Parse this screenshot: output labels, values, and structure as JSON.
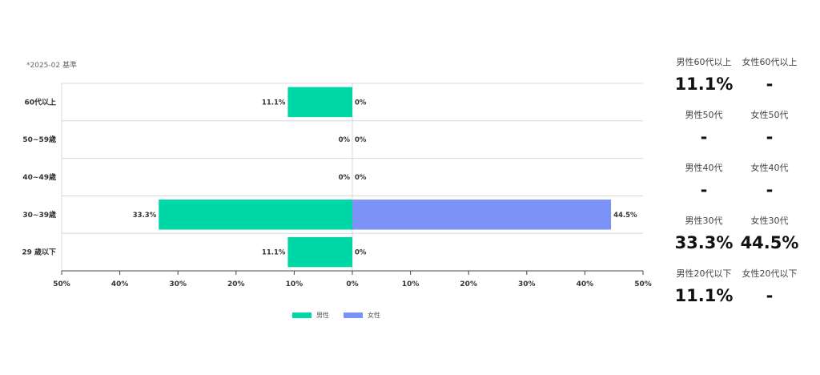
{
  "note": "*2025-02 基準",
  "legend": [
    {
      "label": "男性",
      "color": "#00d7a6"
    },
    {
      "label": "女性",
      "color": "#7b92f7"
    }
  ],
  "stats": [
    {
      "male_label": "男性60代以上",
      "male_value": "11.1%",
      "female_label": "女性60代以上",
      "female_value": "-"
    },
    {
      "male_label": "男性50代",
      "male_value": "-",
      "female_label": "女性50代",
      "female_value": "-"
    },
    {
      "male_label": "男性40代",
      "male_value": "-",
      "female_label": "女性40代",
      "female_value": "-"
    },
    {
      "male_label": "男性30代",
      "male_value": "33.3%",
      "female_label": "女性30代",
      "female_value": "44.5%"
    },
    {
      "male_label": "男性20代以下",
      "male_value": "11.1%",
      "female_label": "女性20代以下",
      "female_value": "-"
    }
  ],
  "chart_data": {
    "type": "bar",
    "orientation": "horizontal-diverging",
    "categories": [
      "60代以上",
      "50~59歳",
      "40~49歳",
      "30~39歳",
      "29 歳以下"
    ],
    "series": [
      {
        "name": "男性",
        "values": [
          11.1,
          0,
          0,
          33.3,
          11.1
        ],
        "labels": [
          "11.1%",
          "0%",
          "0%",
          "33.3%",
          "11.1%"
        ],
        "color": "#00d7a6"
      },
      {
        "name": "女性",
        "values": [
          0,
          0,
          0,
          44.5,
          0
        ],
        "labels": [
          "0%",
          "0%",
          "0%",
          "44.5%",
          "0%"
        ],
        "color": "#7b92f7"
      }
    ],
    "xlim": [
      -50,
      50
    ],
    "x_ticks": [
      -50,
      -40,
      -30,
      -20,
      -10,
      0,
      10,
      20,
      30,
      40,
      50
    ],
    "x_tick_labels": [
      "50%",
      "40%",
      "30%",
      "20%",
      "10%",
      "0%",
      "10%",
      "20%",
      "30%",
      "40%",
      "50%"
    ],
    "grid": true,
    "legend_position": "bottom"
  }
}
